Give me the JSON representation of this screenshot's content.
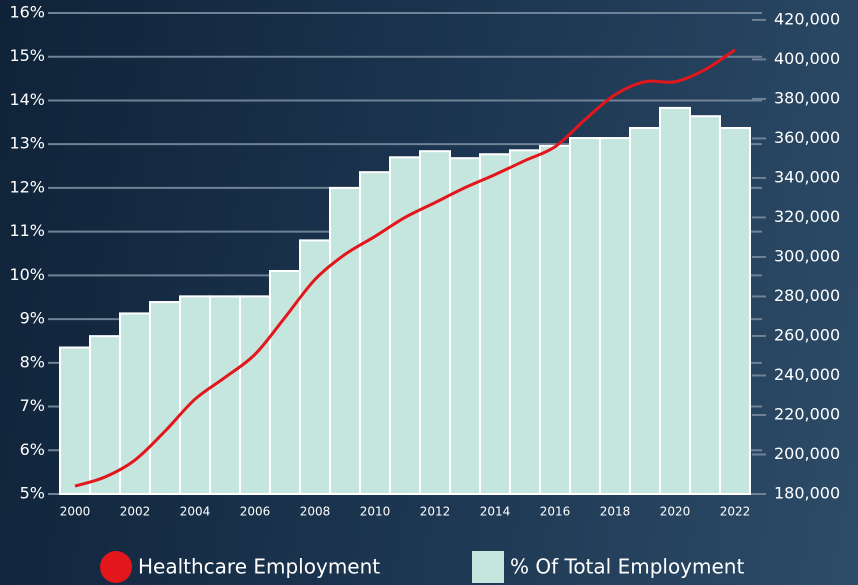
{
  "chart_data": {
    "type": "combo",
    "categories": [
      "2000",
      null,
      "2002",
      null,
      "2004",
      null,
      "2006",
      null,
      "2008",
      null,
      "2010",
      null,
      "2012",
      null,
      "2014",
      null,
      "2016",
      null,
      "2018",
      null,
      "2020",
      null,
      "2022"
    ],
    "series": [
      {
        "name": "Healthcare Employment",
        "type": "line",
        "axis": "y2",
        "color": "#e3161b",
        "values": [
          184000,
          188600,
          197200,
          211800,
          228000,
          239000,
          250700,
          269400,
          288600,
          301300,
          310400,
          320000,
          327500,
          335100,
          341700,
          348800,
          355800,
          369500,
          382100,
          388700,
          388700,
          394800,
          404900
        ]
      },
      {
        "name": "% Of Total Employment",
        "type": "bar",
        "color": "#c4e6de",
        "values": [
          8.35,
          8.61,
          9.13,
          9.39,
          9.52,
          9.52,
          9.52,
          10.1,
          10.8,
          12.0,
          12.36,
          12.7,
          12.84,
          12.68,
          12.77,
          12.86,
          12.96,
          13.14,
          13.14,
          13.37,
          13.83,
          13.64,
          13.37
        ]
      }
    ],
    "ylim": [
      5,
      16
    ],
    "yticks": [
      {
        "value": 5,
        "label": "5%"
      },
      {
        "value": 6,
        "label": "6%"
      },
      {
        "value": 7,
        "label": "7%"
      },
      {
        "value": 8,
        "label": "8%"
      },
      {
        "value": 9,
        "label": "9%"
      },
      {
        "value": 10,
        "label": "10%"
      },
      {
        "value": 11,
        "label": "11%"
      },
      {
        "value": 12,
        "label": "12%"
      },
      {
        "value": 13,
        "label": "13%"
      },
      {
        "value": 14,
        "label": "14%"
      },
      {
        "value": 15,
        "label": "15%"
      },
      {
        "value": 16,
        "label": "16%"
      }
    ],
    "y2lim": [
      180000,
      423500
    ],
    "y2ticks": [
      {
        "value": 180000,
        "label": "180,000"
      },
      {
        "value": 200000,
        "label": "200,000"
      },
      {
        "value": 220000,
        "label": "220,000"
      },
      {
        "value": 240000,
        "label": "240,000"
      },
      {
        "value": 260000,
        "label": "260,000"
      },
      {
        "value": 280000,
        "label": "280,000"
      },
      {
        "value": 300000,
        "label": "300,000"
      },
      {
        "value": 320000,
        "label": "320,000"
      },
      {
        "value": 340000,
        "label": "340,000"
      },
      {
        "value": 360000,
        "label": "360,000"
      },
      {
        "value": 380000,
        "label": "380,000"
      },
      {
        "value": 400000,
        "label": "400,000"
      },
      {
        "value": 420000,
        "label": "420,000"
      }
    ],
    "grid": true,
    "legend": "bottom"
  }
}
